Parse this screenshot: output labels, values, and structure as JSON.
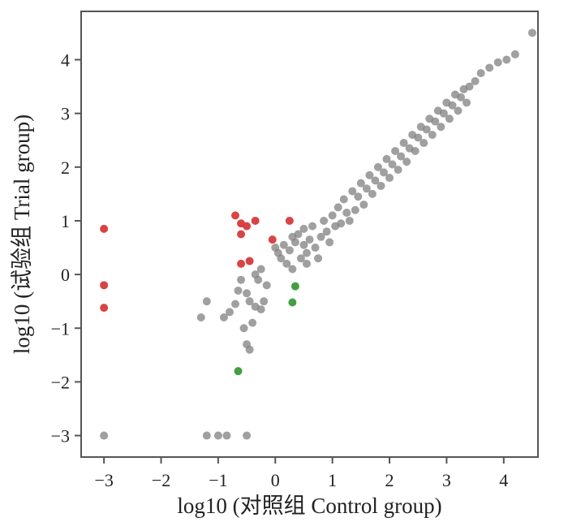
{
  "chart_data": {
    "type": "scatter",
    "xlabel": "log10 (对照组 Control group)",
    "ylabel": "log10 (试验组 Trial group)",
    "xlim": [
      -3.4,
      4.6
    ],
    "ylim": [
      -3.4,
      4.9
    ],
    "xticks": [
      -3,
      -2,
      -1,
      0,
      1,
      2,
      3,
      4
    ],
    "yticks": [
      -3,
      -2,
      -1,
      0,
      1,
      2,
      3,
      4
    ],
    "grid": false,
    "legend": "none",
    "colors": {
      "gray": "#808080",
      "red": "#d63a3a",
      "green": "#3a9a3a"
    },
    "series": [
      {
        "color": "gray",
        "points": [
          [
            -3.0,
            -3.0
          ],
          [
            -1.2,
            -3.0
          ],
          [
            -1.0,
            -3.0
          ],
          [
            -0.85,
            -3.0
          ],
          [
            -0.5,
            -3.0
          ],
          [
            -1.3,
            -0.8
          ],
          [
            -1.2,
            -0.5
          ],
          [
            -0.9,
            -0.8
          ],
          [
            -0.8,
            -0.7
          ],
          [
            -0.7,
            -0.55
          ],
          [
            -0.65,
            -0.3
          ],
          [
            -0.6,
            -0.1
          ],
          [
            -0.5,
            -0.35
          ],
          [
            -0.55,
            -1.0
          ],
          [
            -0.5,
            -1.3
          ],
          [
            -0.45,
            -1.4
          ],
          [
            -0.4,
            -0.9
          ],
          [
            -0.35,
            -0.6
          ],
          [
            -0.3,
            -0.1
          ],
          [
            -0.25,
            0.1
          ],
          [
            -0.2,
            -0.5
          ],
          [
            -0.15,
            -0.2
          ],
          [
            -0.45,
            -0.5
          ],
          [
            -0.35,
            0.0
          ],
          [
            -0.25,
            -0.65
          ],
          [
            0.0,
            0.5
          ],
          [
            0.05,
            0.4
          ],
          [
            0.1,
            0.3
          ],
          [
            0.15,
            0.55
          ],
          [
            0.2,
            0.2
          ],
          [
            0.25,
            0.45
          ],
          [
            0.3,
            0.7
          ],
          [
            0.3,
            0.1
          ],
          [
            0.35,
            0.6
          ],
          [
            0.4,
            0.75
          ],
          [
            0.45,
            0.3
          ],
          [
            0.5,
            0.55
          ],
          [
            0.5,
            0.85
          ],
          [
            0.55,
            0.2
          ],
          [
            0.55,
            0.4
          ],
          [
            0.6,
            0.65
          ],
          [
            0.65,
            0.9
          ],
          [
            0.7,
            0.5
          ],
          [
            0.75,
            0.3
          ],
          [
            0.8,
            0.7
          ],
          [
            0.85,
            1.0
          ],
          [
            0.9,
            0.8
          ],
          [
            0.95,
            0.6
          ],
          [
            1.0,
            1.1
          ],
          [
            1.05,
            0.9
          ],
          [
            1.1,
            1.25
          ],
          [
            1.15,
            0.95
          ],
          [
            1.2,
            1.4
          ],
          [
            1.25,
            1.15
          ],
          [
            1.3,
            1.0
          ],
          [
            1.35,
            1.55
          ],
          [
            1.4,
            1.2
          ],
          [
            1.45,
            1.45
          ],
          [
            1.5,
            1.7
          ],
          [
            1.55,
            1.3
          ],
          [
            1.6,
            1.6
          ],
          [
            1.65,
            1.85
          ],
          [
            1.7,
            1.5
          ],
          [
            1.75,
            1.75
          ],
          [
            1.8,
            2.0
          ],
          [
            1.85,
            1.65
          ],
          [
            1.9,
            1.9
          ],
          [
            1.95,
            2.15
          ],
          [
            2.0,
            1.8
          ],
          [
            2.05,
            2.05
          ],
          [
            2.1,
            2.3
          ],
          [
            2.15,
            1.95
          ],
          [
            2.2,
            2.2
          ],
          [
            2.25,
            2.45
          ],
          [
            2.3,
            2.1
          ],
          [
            2.35,
            2.35
          ],
          [
            2.4,
            2.6
          ],
          [
            2.45,
            2.3
          ],
          [
            2.5,
            2.55
          ],
          [
            2.55,
            2.75
          ],
          [
            2.6,
            2.45
          ],
          [
            2.65,
            2.7
          ],
          [
            2.7,
            2.9
          ],
          [
            2.75,
            2.6
          ],
          [
            2.8,
            2.85
          ],
          [
            2.85,
            3.05
          ],
          [
            2.9,
            2.75
          ],
          [
            2.95,
            3.0
          ],
          [
            3.0,
            3.2
          ],
          [
            3.05,
            2.9
          ],
          [
            3.1,
            3.15
          ],
          [
            3.15,
            3.35
          ],
          [
            3.2,
            3.05
          ],
          [
            3.25,
            3.3
          ],
          [
            3.3,
            3.45
          ],
          [
            3.35,
            3.2
          ],
          [
            3.4,
            3.5
          ],
          [
            3.5,
            3.6
          ],
          [
            3.6,
            3.75
          ],
          [
            3.75,
            3.85
          ],
          [
            3.9,
            3.95
          ],
          [
            4.05,
            4.0
          ],
          [
            4.2,
            4.1
          ],
          [
            4.5,
            4.5
          ]
        ]
      },
      {
        "color": "red",
        "points": [
          [
            -3.0,
            0.85
          ],
          [
            -3.0,
            -0.2
          ],
          [
            -3.0,
            -0.62
          ],
          [
            -0.7,
            1.1
          ],
          [
            -0.6,
            0.95
          ],
          [
            -0.5,
            0.9
          ],
          [
            -0.35,
            1.0
          ],
          [
            -0.6,
            0.75
          ],
          [
            0.25,
            1.0
          ],
          [
            -0.05,
            0.65
          ],
          [
            -0.6,
            0.2
          ],
          [
            -0.45,
            0.25
          ]
        ]
      },
      {
        "color": "green",
        "points": [
          [
            0.35,
            -0.22
          ],
          [
            0.3,
            -0.52
          ],
          [
            -0.65,
            -1.8
          ]
        ]
      }
    ]
  }
}
